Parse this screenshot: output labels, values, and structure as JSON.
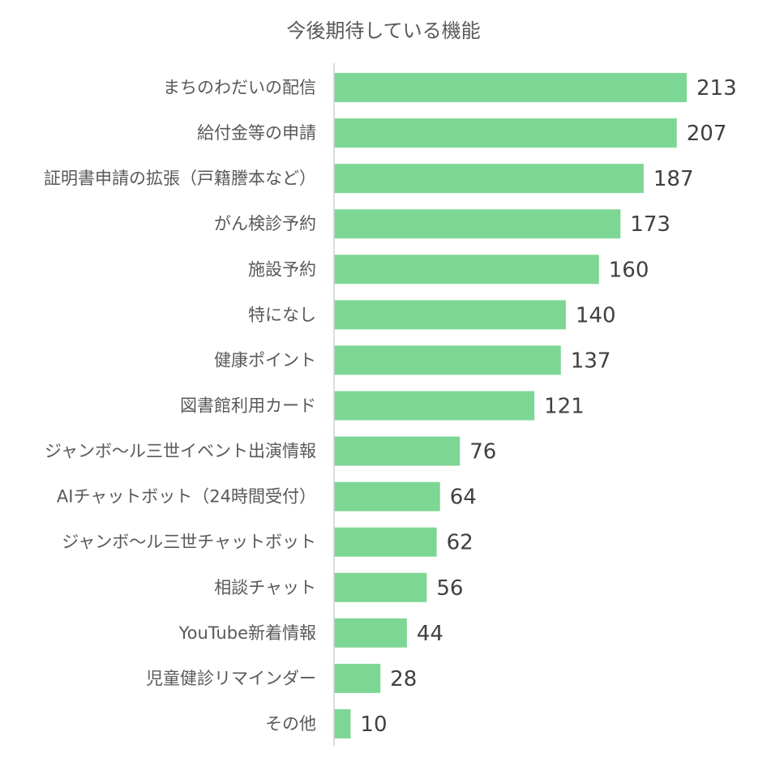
{
  "chart_data": {
    "type": "bar",
    "orientation": "horizontal",
    "title": "今後期待している機能",
    "categories": [
      "まちのわだいの配信",
      "給付金等の申請",
      "証明書申請の拡張（戸籍謄本など）",
      "がん検診予約",
      "施設予約",
      "特になし",
      "健康ポイント",
      "図書館利用カード",
      "ジャンボ～ル三世イベント出演情報",
      "AIチャットボット（24時間受付）",
      "ジャンボ～ル三世チャットボット",
      "相談チャット",
      "YouTube新着情報",
      "児童健診リマインダー",
      "その他"
    ],
    "values": [
      213,
      207,
      187,
      173,
      160,
      140,
      137,
      121,
      76,
      64,
      62,
      56,
      44,
      28,
      10
    ],
    "xlim": [
      0,
      213
    ],
    "grid": false,
    "data_labels": true,
    "bar_color": "#7dd794"
  }
}
